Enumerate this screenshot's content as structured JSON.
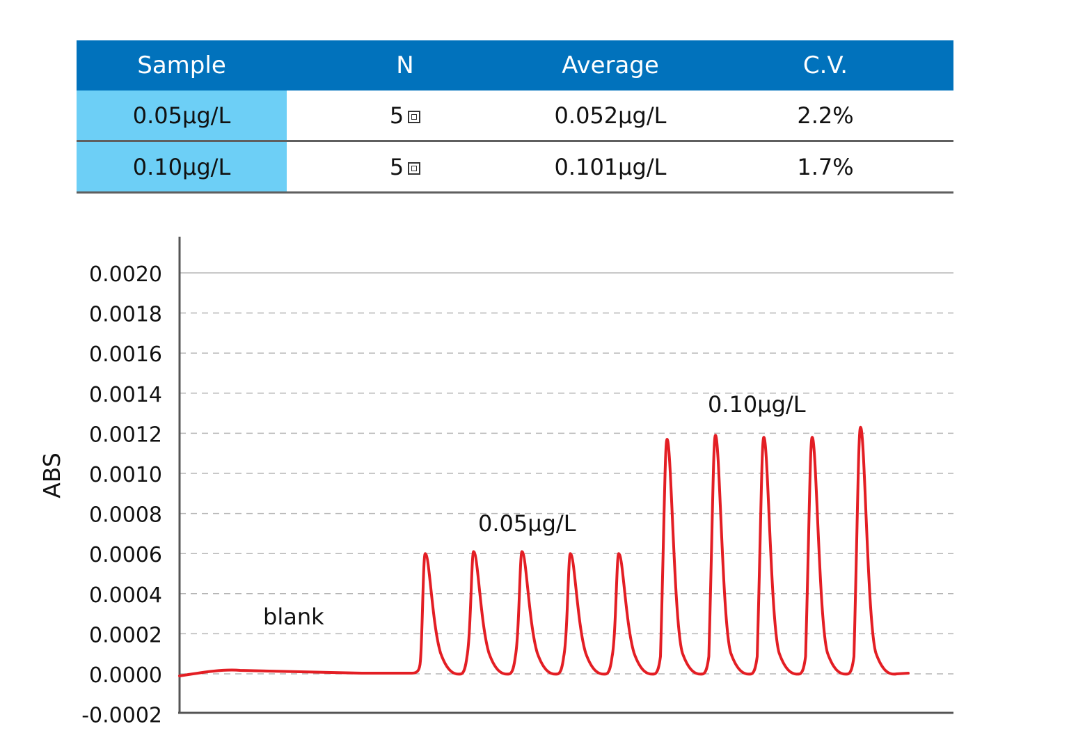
{
  "table": {
    "headers": [
      "Sample",
      "N",
      "Average",
      "C.V."
    ],
    "rows": [
      {
        "sample": "0.05μg/L",
        "n": "5",
        "average": "0.052μg/L",
        "cv": "2.2%"
      },
      {
        "sample": "0.10μg/L",
        "n": "5",
        "average": "0.101μg/L",
        "cv": "1.7%"
      }
    ],
    "colors": {
      "header_bg": "#0172bc",
      "sample_bg": "#6dcff6"
    }
  },
  "chart_data": {
    "type": "line",
    "title": "",
    "xlabel": "",
    "ylabel": "ABS",
    "ylim": [
      -0.0002,
      0.0022
    ],
    "yticks": [
      "0.0020",
      "0.0018",
      "0.0016",
      "0.0014",
      "0.0012",
      "0.0010",
      "0.0008",
      "0.0006",
      "0.0004",
      "0.0002",
      "0.0000",
      "-0.0002"
    ],
    "grid": "dashed horizontal",
    "line_color": "#e31e24",
    "annotations": [
      {
        "text": "blank",
        "region": "baseline"
      },
      {
        "text": "0.05μg/L",
        "region": "first five peaks"
      },
      {
        "text": "0.10μg/L",
        "region": "last five peaks"
      }
    ],
    "series": [
      {
        "baseline": 0.0,
        "peaks": [
          0.0006,
          0.00061,
          0.00061,
          0.0006,
          0.0006,
          0.00117,
          0.00119,
          0.00118,
          0.00118,
          0.00123
        ]
      }
    ]
  }
}
